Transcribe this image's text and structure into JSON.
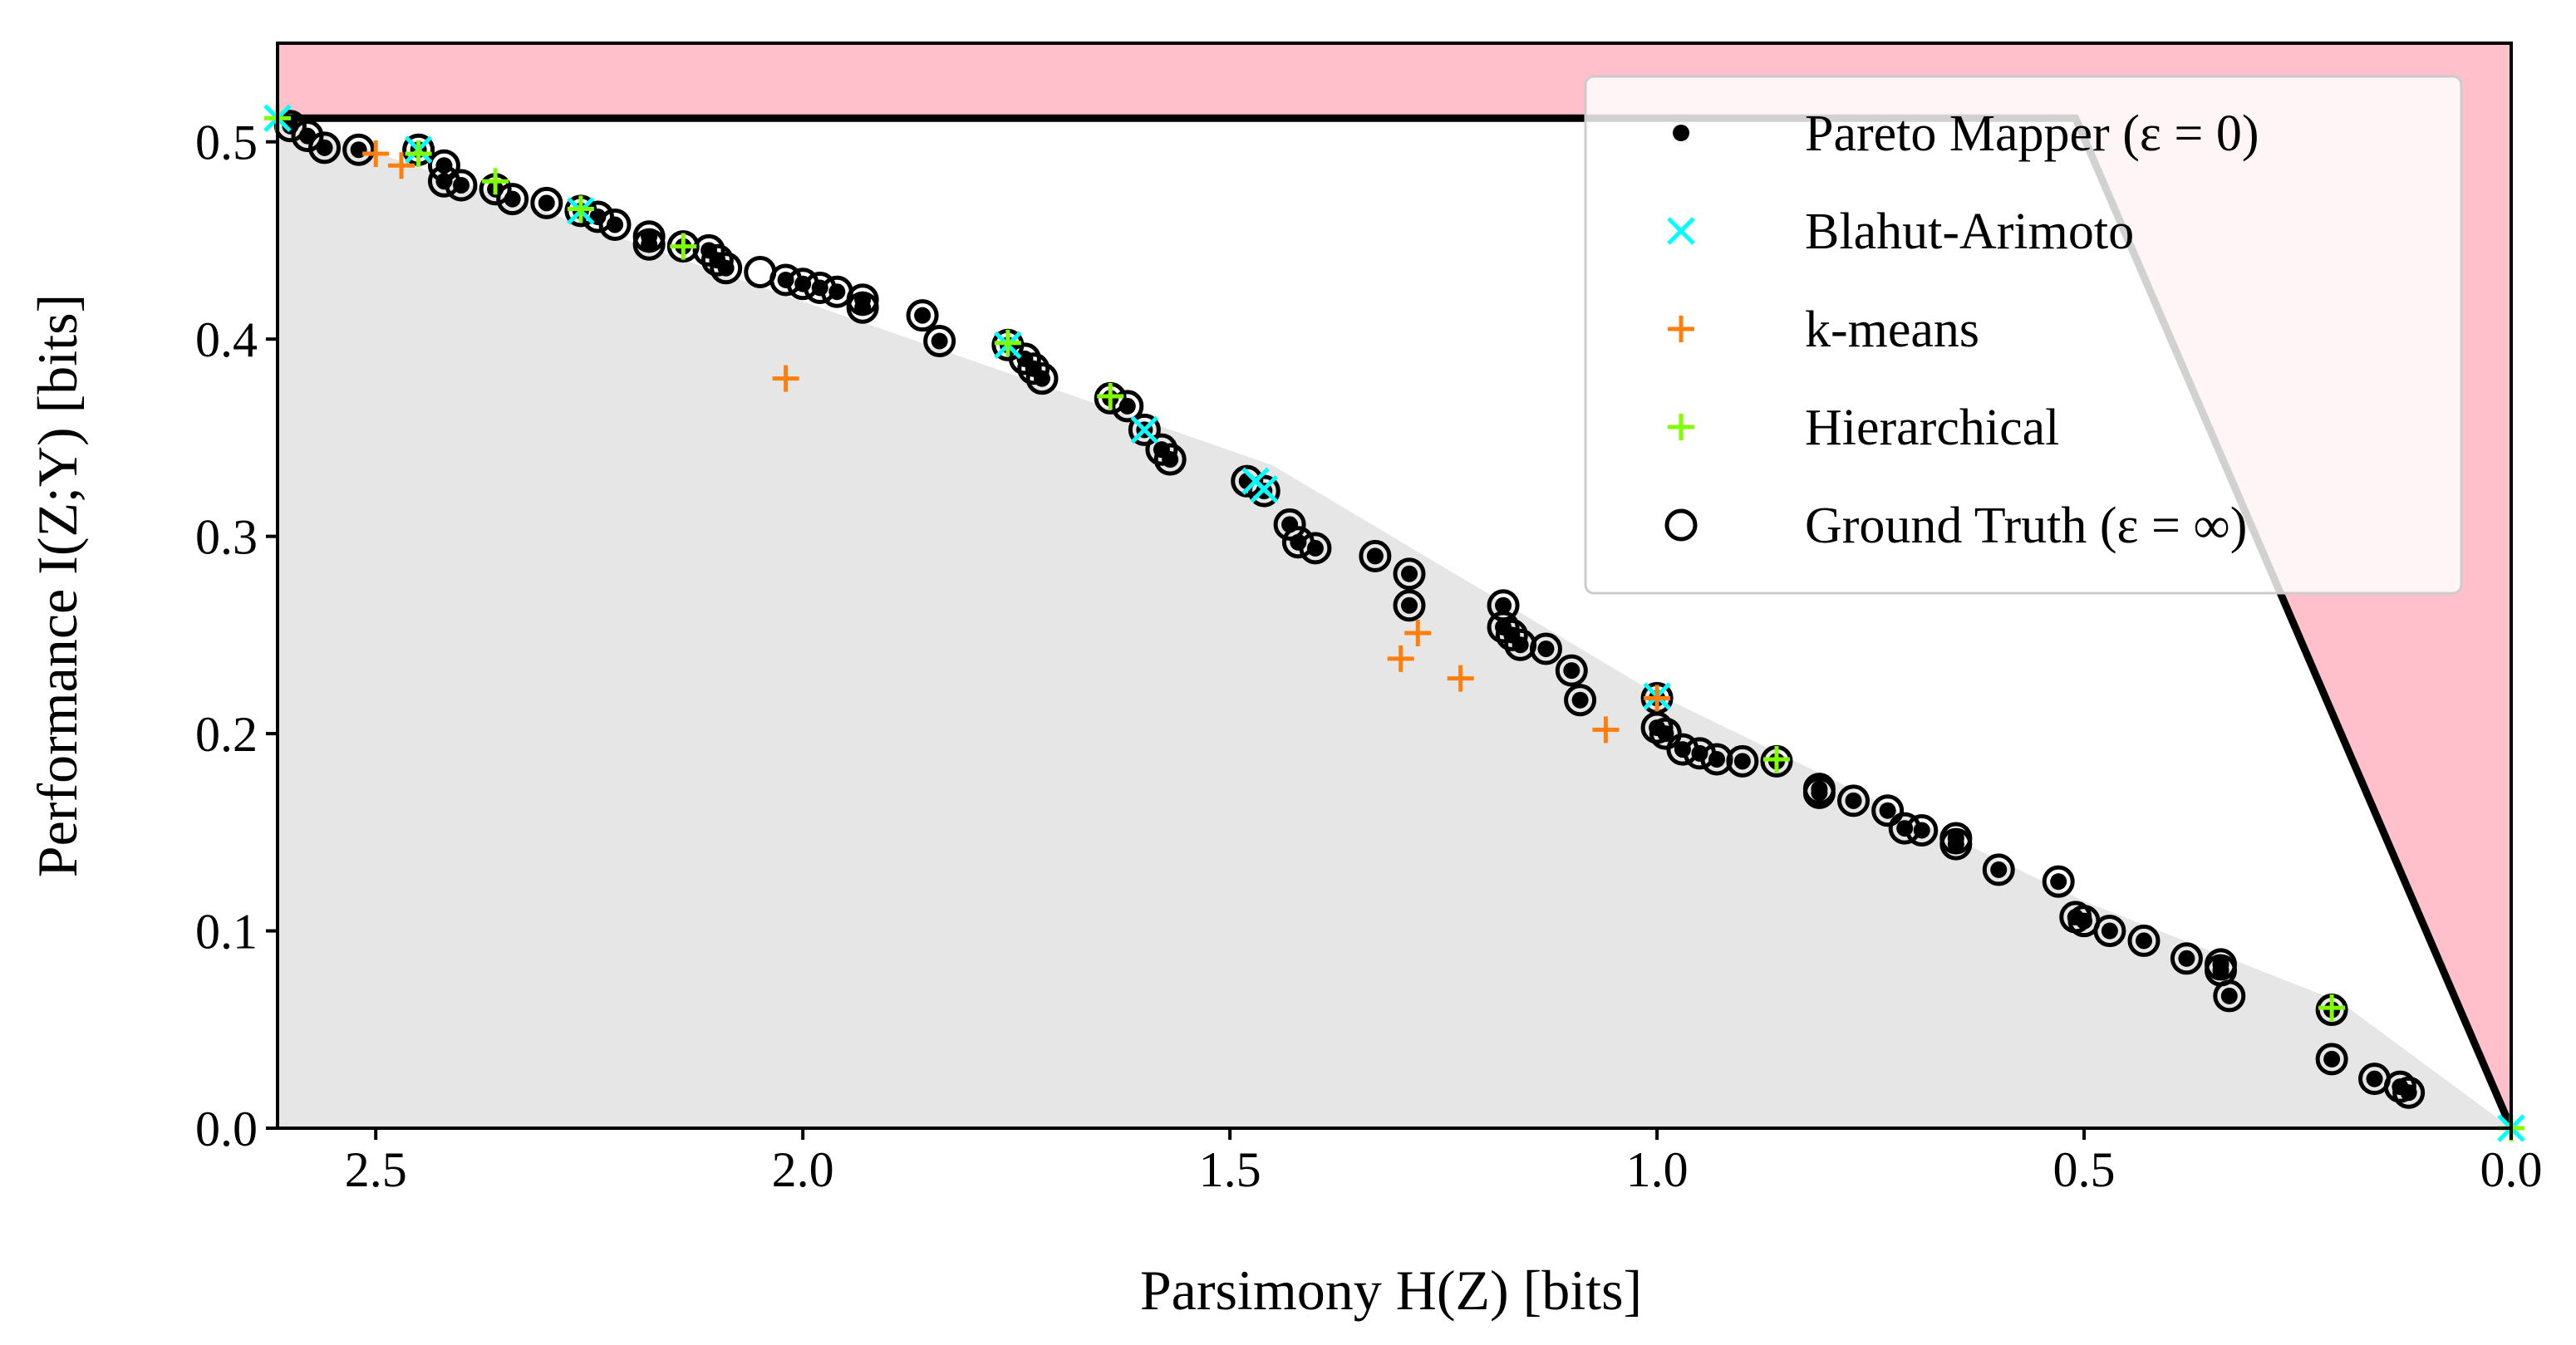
{
  "chart_data": {
    "type": "scatter",
    "title": "",
    "xlabel": "Parsimony H(Z) [bits]",
    "ylabel": "Performance I(Z;Y) [bits]",
    "xlim": [
      2.615,
      0.0
    ],
    "ylim": [
      0.0,
      0.55
    ],
    "x_ticks": [
      2.5,
      2.0,
      1.5,
      1.0,
      0.5,
      0.0
    ],
    "x_tick_labels": [
      "2.5",
      "2.0",
      "1.5",
      "1.0",
      "0.5",
      "0.0"
    ],
    "y_ticks": [
      0.0,
      0.1,
      0.2,
      0.3,
      0.4,
      0.5
    ],
    "y_tick_labels": [
      "0.0",
      "0.1",
      "0.2",
      "0.3",
      "0.4",
      "0.5"
    ],
    "grid": false,
    "legend_position": "top-right",
    "colors": {
      "infeasible_region": "#ffc0cb",
      "achievable_region": "#e6e6e6",
      "bound_line": "#000000",
      "pareto": "#000000",
      "blahut": "#00ffff",
      "kmeans": "#ff7f0e",
      "hierarchical": "#7fff00",
      "ground_truth": "#000000"
    },
    "regions": [
      {
        "name": "infeasible-region",
        "points": [
          [
            2.615,
            0.55
          ],
          [
            0.0,
            0.55
          ],
          [
            0.0,
            0.0
          ],
          [
            0.51,
            0.512
          ],
          [
            2.615,
            0.512
          ]
        ]
      },
      {
        "name": "achievable-region",
        "points": [
          [
            2.615,
            0.512
          ],
          [
            1.45,
            0.336
          ],
          [
            1.0,
            0.22
          ],
          [
            0.5,
            0.115
          ],
          [
            0.2,
            0.064
          ],
          [
            0.0,
            0.0
          ],
          [
            2.615,
            0.0
          ]
        ]
      }
    ],
    "bound_line": [
      [
        2.615,
        0.512
      ],
      [
        0.51,
        0.512
      ],
      [
        0.0,
        0.0
      ]
    ],
    "series": [
      {
        "name": "Ground Truth  (ε = ∞)",
        "marker": "open-circle",
        "points": [
          [
            2.6,
            0.508
          ],
          [
            2.58,
            0.503
          ],
          [
            2.56,
            0.497
          ],
          [
            2.52,
            0.496
          ],
          [
            2.45,
            0.496
          ],
          [
            2.42,
            0.488
          ],
          [
            2.42,
            0.48
          ],
          [
            2.4,
            0.478
          ],
          [
            2.36,
            0.476
          ],
          [
            2.34,
            0.471
          ],
          [
            2.3,
            0.469
          ],
          [
            2.26,
            0.465
          ],
          [
            2.24,
            0.462
          ],
          [
            2.22,
            0.458
          ],
          [
            2.18,
            0.452
          ],
          [
            2.18,
            0.448
          ],
          [
            2.14,
            0.447
          ],
          [
            2.11,
            0.445
          ],
          [
            2.1,
            0.44
          ],
          [
            2.09,
            0.436
          ],
          [
            2.05,
            0.434
          ],
          [
            2.02,
            0.43
          ],
          [
            2.0,
            0.428
          ],
          [
            1.98,
            0.426
          ],
          [
            1.96,
            0.424
          ],
          [
            1.93,
            0.42
          ],
          [
            1.93,
            0.416
          ],
          [
            1.86,
            0.412
          ],
          [
            1.84,
            0.399
          ],
          [
            1.76,
            0.397
          ],
          [
            1.74,
            0.39
          ],
          [
            1.73,
            0.385
          ],
          [
            1.72,
            0.38
          ],
          [
            1.64,
            0.37
          ],
          [
            1.62,
            0.366
          ],
          [
            1.6,
            0.354
          ],
          [
            1.58,
            0.344
          ],
          [
            1.57,
            0.339
          ],
          [
            1.48,
            0.328
          ],
          [
            1.46,
            0.323
          ],
          [
            1.43,
            0.306
          ],
          [
            1.42,
            0.297
          ],
          [
            1.4,
            0.294
          ],
          [
            1.33,
            0.29
          ],
          [
            1.29,
            0.281
          ],
          [
            1.29,
            0.265
          ],
          [
            1.18,
            0.265
          ],
          [
            1.18,
            0.254
          ],
          [
            1.17,
            0.25
          ],
          [
            1.16,
            0.245
          ],
          [
            1.13,
            0.243
          ],
          [
            1.1,
            0.232
          ],
          [
            1.09,
            0.217
          ],
          [
            1.0,
            0.218
          ],
          [
            1.0,
            0.203
          ],
          [
            0.99,
            0.2
          ],
          [
            0.97,
            0.192
          ],
          [
            0.95,
            0.19
          ],
          [
            0.93,
            0.187
          ],
          [
            0.9,
            0.186
          ],
          [
            0.86,
            0.186
          ],
          [
            0.81,
            0.172
          ],
          [
            0.81,
            0.17
          ],
          [
            0.77,
            0.166
          ],
          [
            0.73,
            0.161
          ],
          [
            0.71,
            0.152
          ],
          [
            0.69,
            0.151
          ],
          [
            0.65,
            0.147
          ],
          [
            0.65,
            0.144
          ],
          [
            0.6,
            0.131
          ],
          [
            0.53,
            0.125
          ],
          [
            0.51,
            0.107
          ],
          [
            0.5,
            0.105
          ],
          [
            0.47,
            0.1
          ],
          [
            0.43,
            0.095
          ],
          [
            0.38,
            0.086
          ],
          [
            0.34,
            0.083
          ],
          [
            0.34,
            0.08
          ],
          [
            0.33,
            0.067
          ],
          [
            0.21,
            0.06
          ],
          [
            0.21,
            0.035
          ],
          [
            0.16,
            0.025
          ],
          [
            0.13,
            0.021
          ],
          [
            0.12,
            0.018
          ]
        ]
      },
      {
        "name": "Pareto Mapper (ε = 0)",
        "marker": "dot",
        "points": [
          [
            2.6,
            0.508
          ],
          [
            2.58,
            0.503
          ],
          [
            2.56,
            0.497
          ],
          [
            2.52,
            0.496
          ],
          [
            2.45,
            0.496
          ],
          [
            2.42,
            0.488
          ],
          [
            2.42,
            0.48
          ],
          [
            2.4,
            0.478
          ],
          [
            2.36,
            0.476
          ],
          [
            2.34,
            0.471
          ],
          [
            2.3,
            0.469
          ],
          [
            2.26,
            0.465
          ],
          [
            2.24,
            0.462
          ],
          [
            2.22,
            0.458
          ],
          [
            2.18,
            0.452
          ],
          [
            2.18,
            0.448
          ],
          [
            2.14,
            0.447
          ],
          [
            2.11,
            0.445
          ],
          [
            2.1,
            0.44
          ],
          [
            2.09,
            0.436
          ],
          [
            2.02,
            0.43
          ],
          [
            2.0,
            0.428
          ],
          [
            1.98,
            0.426
          ],
          [
            1.96,
            0.424
          ],
          [
            1.93,
            0.42
          ],
          [
            1.93,
            0.416
          ],
          [
            1.86,
            0.412
          ],
          [
            1.84,
            0.399
          ],
          [
            1.76,
            0.397
          ],
          [
            1.74,
            0.39
          ],
          [
            1.73,
            0.385
          ],
          [
            1.72,
            0.38
          ],
          [
            1.64,
            0.37
          ],
          [
            1.62,
            0.366
          ],
          [
            1.6,
            0.354
          ],
          [
            1.58,
            0.344
          ],
          [
            1.57,
            0.339
          ],
          [
            1.48,
            0.328
          ],
          [
            1.46,
            0.323
          ],
          [
            1.43,
            0.306
          ],
          [
            1.42,
            0.297
          ],
          [
            1.4,
            0.294
          ],
          [
            1.33,
            0.29
          ],
          [
            1.29,
            0.281
          ],
          [
            1.29,
            0.265
          ],
          [
            1.18,
            0.265
          ],
          [
            1.18,
            0.254
          ],
          [
            1.17,
            0.25
          ],
          [
            1.16,
            0.245
          ],
          [
            1.13,
            0.243
          ],
          [
            1.1,
            0.232
          ],
          [
            1.09,
            0.217
          ],
          [
            1.0,
            0.218
          ],
          [
            1.0,
            0.203
          ],
          [
            0.99,
            0.2
          ],
          [
            0.97,
            0.192
          ],
          [
            0.95,
            0.19
          ],
          [
            0.93,
            0.187
          ],
          [
            0.9,
            0.186
          ],
          [
            0.86,
            0.186
          ],
          [
            0.81,
            0.172
          ],
          [
            0.81,
            0.17
          ],
          [
            0.77,
            0.166
          ],
          [
            0.73,
            0.161
          ],
          [
            0.71,
            0.152
          ],
          [
            0.69,
            0.151
          ],
          [
            0.65,
            0.147
          ],
          [
            0.65,
            0.144
          ],
          [
            0.6,
            0.131
          ],
          [
            0.53,
            0.125
          ],
          [
            0.51,
            0.107
          ],
          [
            0.5,
            0.105
          ],
          [
            0.47,
            0.1
          ],
          [
            0.43,
            0.095
          ],
          [
            0.38,
            0.086
          ],
          [
            0.34,
            0.083
          ],
          [
            0.34,
            0.08
          ],
          [
            0.33,
            0.067
          ],
          [
            0.21,
            0.06
          ],
          [
            0.21,
            0.035
          ],
          [
            0.16,
            0.025
          ],
          [
            0.13,
            0.021
          ],
          [
            0.12,
            0.018
          ]
        ]
      },
      {
        "name": "Blahut-Arimoto",
        "marker": "x",
        "points": [
          [
            2.615,
            0.512
          ],
          [
            2.45,
            0.496
          ],
          [
            2.26,
            0.465
          ],
          [
            1.76,
            0.397
          ],
          [
            1.6,
            0.354
          ],
          [
            1.47,
            0.328
          ],
          [
            1.46,
            0.324
          ],
          [
            1.0,
            0.219
          ],
          [
            0.0,
            0.0
          ]
        ]
      },
      {
        "name": "k-means",
        "marker": "plus",
        "points": [
          [
            2.5,
            0.494
          ],
          [
            2.47,
            0.488
          ],
          [
            2.02,
            0.38
          ],
          [
            1.3,
            0.238
          ],
          [
            1.28,
            0.251
          ],
          [
            1.23,
            0.228
          ],
          [
            1.06,
            0.202
          ],
          [
            1.0,
            0.218
          ]
        ]
      },
      {
        "name": "Hierarchical",
        "marker": "plus",
        "points": [
          [
            2.615,
            0.512
          ],
          [
            2.45,
            0.494
          ],
          [
            2.36,
            0.48
          ],
          [
            2.26,
            0.466
          ],
          [
            2.14,
            0.447
          ],
          [
            1.76,
            0.398
          ],
          [
            1.64,
            0.371
          ],
          [
            0.86,
            0.187
          ],
          [
            0.21,
            0.061
          ],
          [
            0.0,
            0.0
          ]
        ]
      }
    ],
    "legend": [
      {
        "label": "Pareto Mapper (ε = 0)",
        "marker": "dot"
      },
      {
        "label": "Blahut-Arimoto",
        "marker": "x"
      },
      {
        "label": "k-means",
        "marker": "plus-kmeans"
      },
      {
        "label": "Hierarchical",
        "marker": "plus-hier"
      },
      {
        "label": "Ground Truth  (ε = ∞)",
        "marker": "open-circle"
      }
    ]
  }
}
